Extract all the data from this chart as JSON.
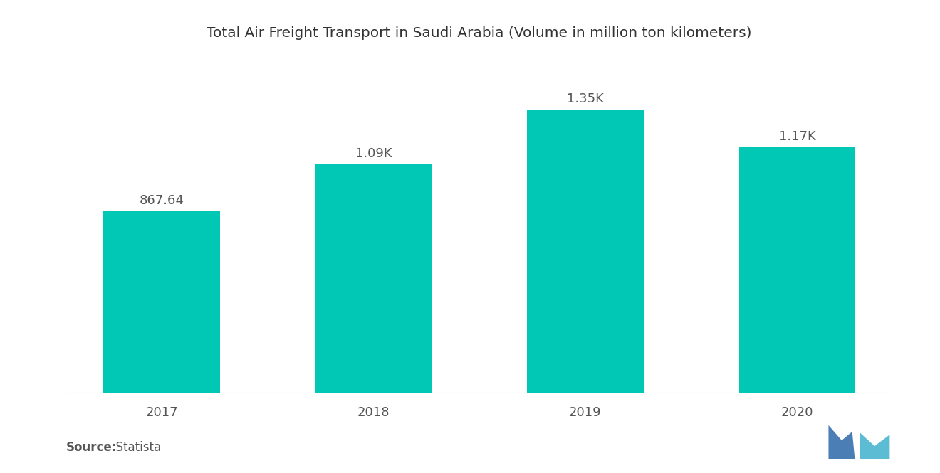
{
  "title": "Total Air Freight Transport in Saudi Arabia (Volume in million ton kilometers)",
  "categories": [
    "2017",
    "2018",
    "2019",
    "2020"
  ],
  "values": [
    867.64,
    1090,
    1350,
    1170
  ],
  "labels": [
    "867.64",
    "1.09K",
    "1.35K",
    "1.17K"
  ],
  "bar_color": "#00C8B4",
  "background_color": "#ffffff",
  "title_fontsize": 14.5,
  "label_fontsize": 13,
  "tick_fontsize": 13,
  "source_bold": "Source:",
  "source_normal": "  Statista",
  "source_fontsize": 12,
  "ylim": [
    0,
    1600
  ],
  "bar_width": 0.55,
  "logo_color1": "#4a7eb5",
  "logo_color2": "#5bbcd4"
}
